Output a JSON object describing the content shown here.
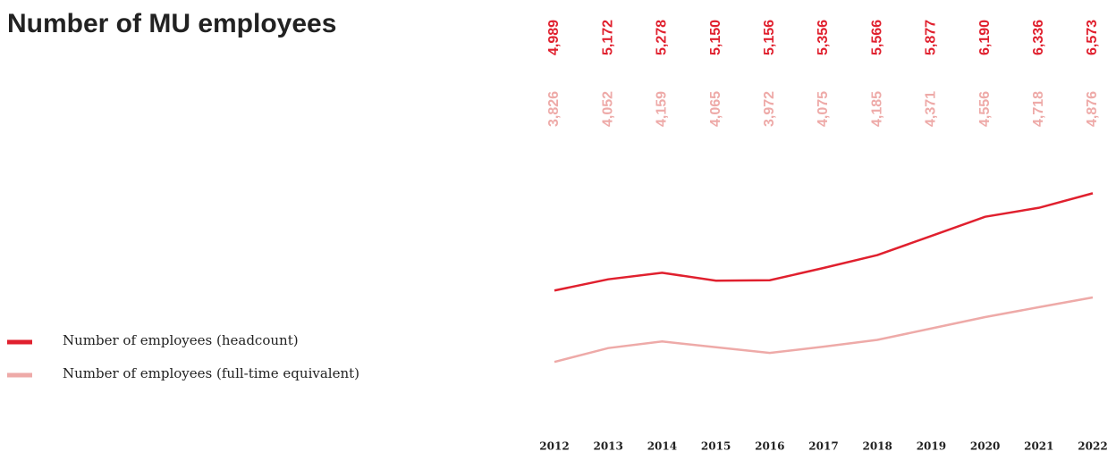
{
  "chart_data": {
    "type": "line",
    "title": "Number of MU employees",
    "categories": [
      "2012",
      "2013",
      "2014",
      "2015",
      "2016",
      "2017",
      "2018",
      "2019",
      "2020",
      "2021",
      "2022"
    ],
    "series": [
      {
        "name": "Number of employees (headcount)",
        "color": "#e0202e",
        "values": [
          4989,
          5172,
          5278,
          5150,
          5156,
          5356,
          5566,
          5877,
          6190,
          6336,
          6573
        ],
        "value_labels": [
          "4,989",
          "5,172",
          "5,278",
          "5,150",
          "5,156",
          "5,356",
          "5,566",
          "5,877",
          "6,190",
          "6,336",
          "6,573"
        ]
      },
      {
        "name": "Number of employees (full-time equivalent)",
        "color": "#eeaaa8",
        "values": [
          3826,
          4052,
          4159,
          4065,
          3972,
          4075,
          4185,
          4371,
          4556,
          4718,
          4876
        ],
        "value_labels": [
          "3,826",
          "4,052",
          "4,159",
          "4,065",
          "3,972",
          "4,075",
          "4,185",
          "4,371",
          "4,556",
          "4,718",
          "4,876"
        ]
      }
    ],
    "ylim": [
      3000,
      7000
    ]
  }
}
